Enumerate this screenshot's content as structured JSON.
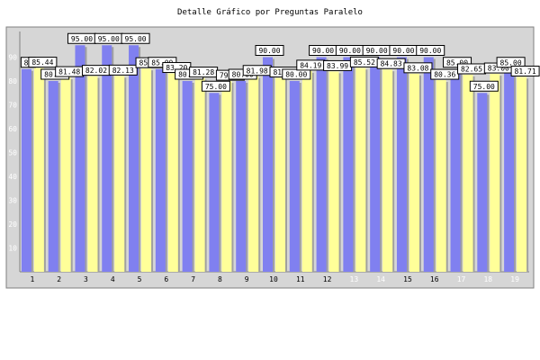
{
  "chart_data": {
    "type": "bar",
    "title": "Detalle Gráfico por Preguntas Paralelo",
    "xlabel": "",
    "ylabel": "",
    "ylim": [
      0,
      100
    ],
    "yticks": [
      10,
      20,
      30,
      40,
      50,
      60,
      70,
      80,
      90
    ],
    "grid": false,
    "categories": [
      "1",
      "2",
      "3",
      "4",
      "5",
      "6",
      "7",
      "8",
      "9",
      "10",
      "11",
      "12",
      "13",
      "14",
      "15",
      "16",
      "17",
      "18",
      "19"
    ],
    "series": [
      {
        "color": "#8080f0",
        "values": [
          85.0,
          80.0,
          95.0,
          95.0,
          95.0,
          85.0,
          80.0,
          75.0,
          80.0,
          90.0,
          80.0,
          90.0,
          90.0,
          90.0,
          90.0,
          90.0,
          85.0,
          75.0,
          85.0
        ],
        "labels": [
          "85",
          "80.00",
          "95.00",
          "95.00",
          "95.00",
          "85.00",
          "80.00",
          "75.00",
          "80.00",
          "90.00",
          "80.00",
          "90.00",
          "90.00",
          "90.00",
          "90.00",
          "90.00",
          "85.00",
          "75.00",
          "85.00"
        ]
      },
      {
        "color": "#ffff99",
        "values": [
          85.44,
          81.48,
          82.02,
          82.13,
          85.23,
          83.2,
          81.28,
          79.96,
          81.98,
          81.3,
          84.19,
          83.99,
          85.52,
          84.83,
          83.08,
          80.36,
          82.65,
          83.0,
          81.71
        ],
        "labels": [
          "85.44",
          "81.48",
          "82.02",
          "82.13",
          "85.23",
          "83.20",
          "81.28",
          "79.96",
          "81.98",
          "81.30",
          "84.19",
          "83.99",
          "85.52",
          "84.83",
          "83.08",
          "80.36",
          "82.65",
          "83.00",
          "81.71"
        ]
      }
    ],
    "colors": {
      "panel": "#d6d6d6",
      "panel_border": "#808080",
      "axis": "#808080",
      "bar_shadow": "#a0a0a0",
      "label_bg": "#ffffff",
      "tick_dark": "#000000",
      "tick_light": "#ffffff"
    }
  }
}
